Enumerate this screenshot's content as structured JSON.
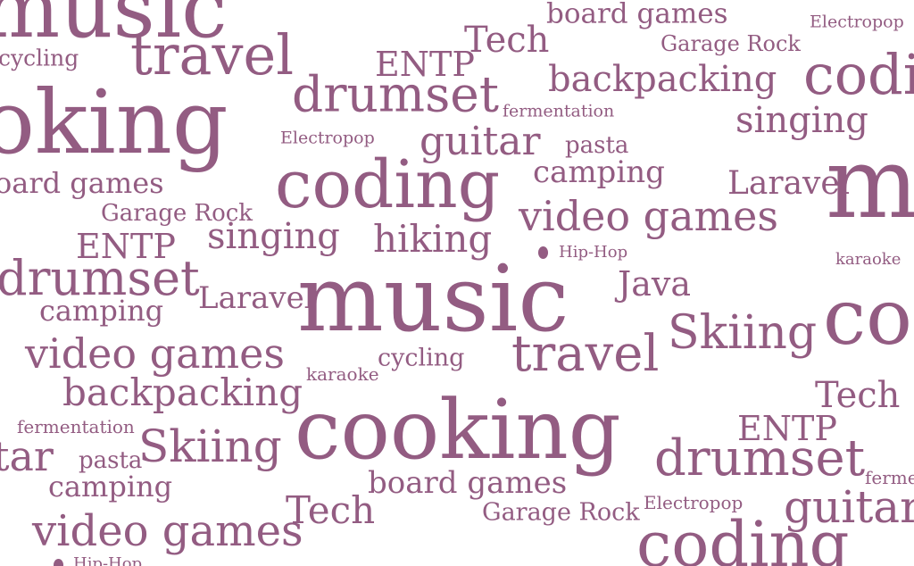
{
  "word_color": "#935c82",
  "background": "#ffffff",
  "words": [
    {
      "text": "music"
    },
    {
      "text": "board games"
    },
    {
      "text": "Electropop"
    },
    {
      "text": "Tech"
    },
    {
      "text": "Garage Rock"
    },
    {
      "text": "cycling"
    },
    {
      "text": "travel"
    },
    {
      "text": "ENTP"
    },
    {
      "text": "coding"
    },
    {
      "text": "backpacking"
    },
    {
      "text": "drumset"
    },
    {
      "text": "oking"
    },
    {
      "text": "fermentation"
    },
    {
      "text": "singing"
    },
    {
      "text": "Electropop"
    },
    {
      "text": "guitar"
    },
    {
      "text": "pasta"
    },
    {
      "text": "camping"
    },
    {
      "text": "coding"
    },
    {
      "text": "oard games"
    },
    {
      "text": "Laravel"
    },
    {
      "text": "m"
    },
    {
      "text": "video games"
    },
    {
      "text": "Garage Rock"
    },
    {
      "text": "singing"
    },
    {
      "text": "hiking"
    },
    {
      "text": "ENTP"
    },
    {
      "text": "Hip-Hop"
    },
    {
      "text": "karaoke"
    },
    {
      "text": "drumset"
    },
    {
      "text": "music"
    },
    {
      "text": "Java"
    },
    {
      "text": "Laravel"
    },
    {
      "text": "camping"
    },
    {
      "text": "co"
    },
    {
      "text": "Skiing"
    },
    {
      "text": "video games"
    },
    {
      "text": "travel"
    },
    {
      "text": "cycling"
    },
    {
      "text": "karaoke"
    },
    {
      "text": "backpacking"
    },
    {
      "text": "Tech"
    },
    {
      "text": "cooking"
    },
    {
      "text": "fermentation"
    },
    {
      "text": "ENTP"
    },
    {
      "text": "Skiing"
    },
    {
      "text": "tar"
    },
    {
      "text": "pasta"
    },
    {
      "text": "drumset"
    },
    {
      "text": "camping"
    },
    {
      "text": "board games"
    },
    {
      "text": "ferme"
    },
    {
      "text": "Electropop"
    },
    {
      "text": "Tech"
    },
    {
      "text": "Garage Rock"
    },
    {
      "text": "guitar"
    },
    {
      "text": "video games"
    },
    {
      "text": "coding"
    },
    {
      "text": "Hip-Hop"
    }
  ]
}
